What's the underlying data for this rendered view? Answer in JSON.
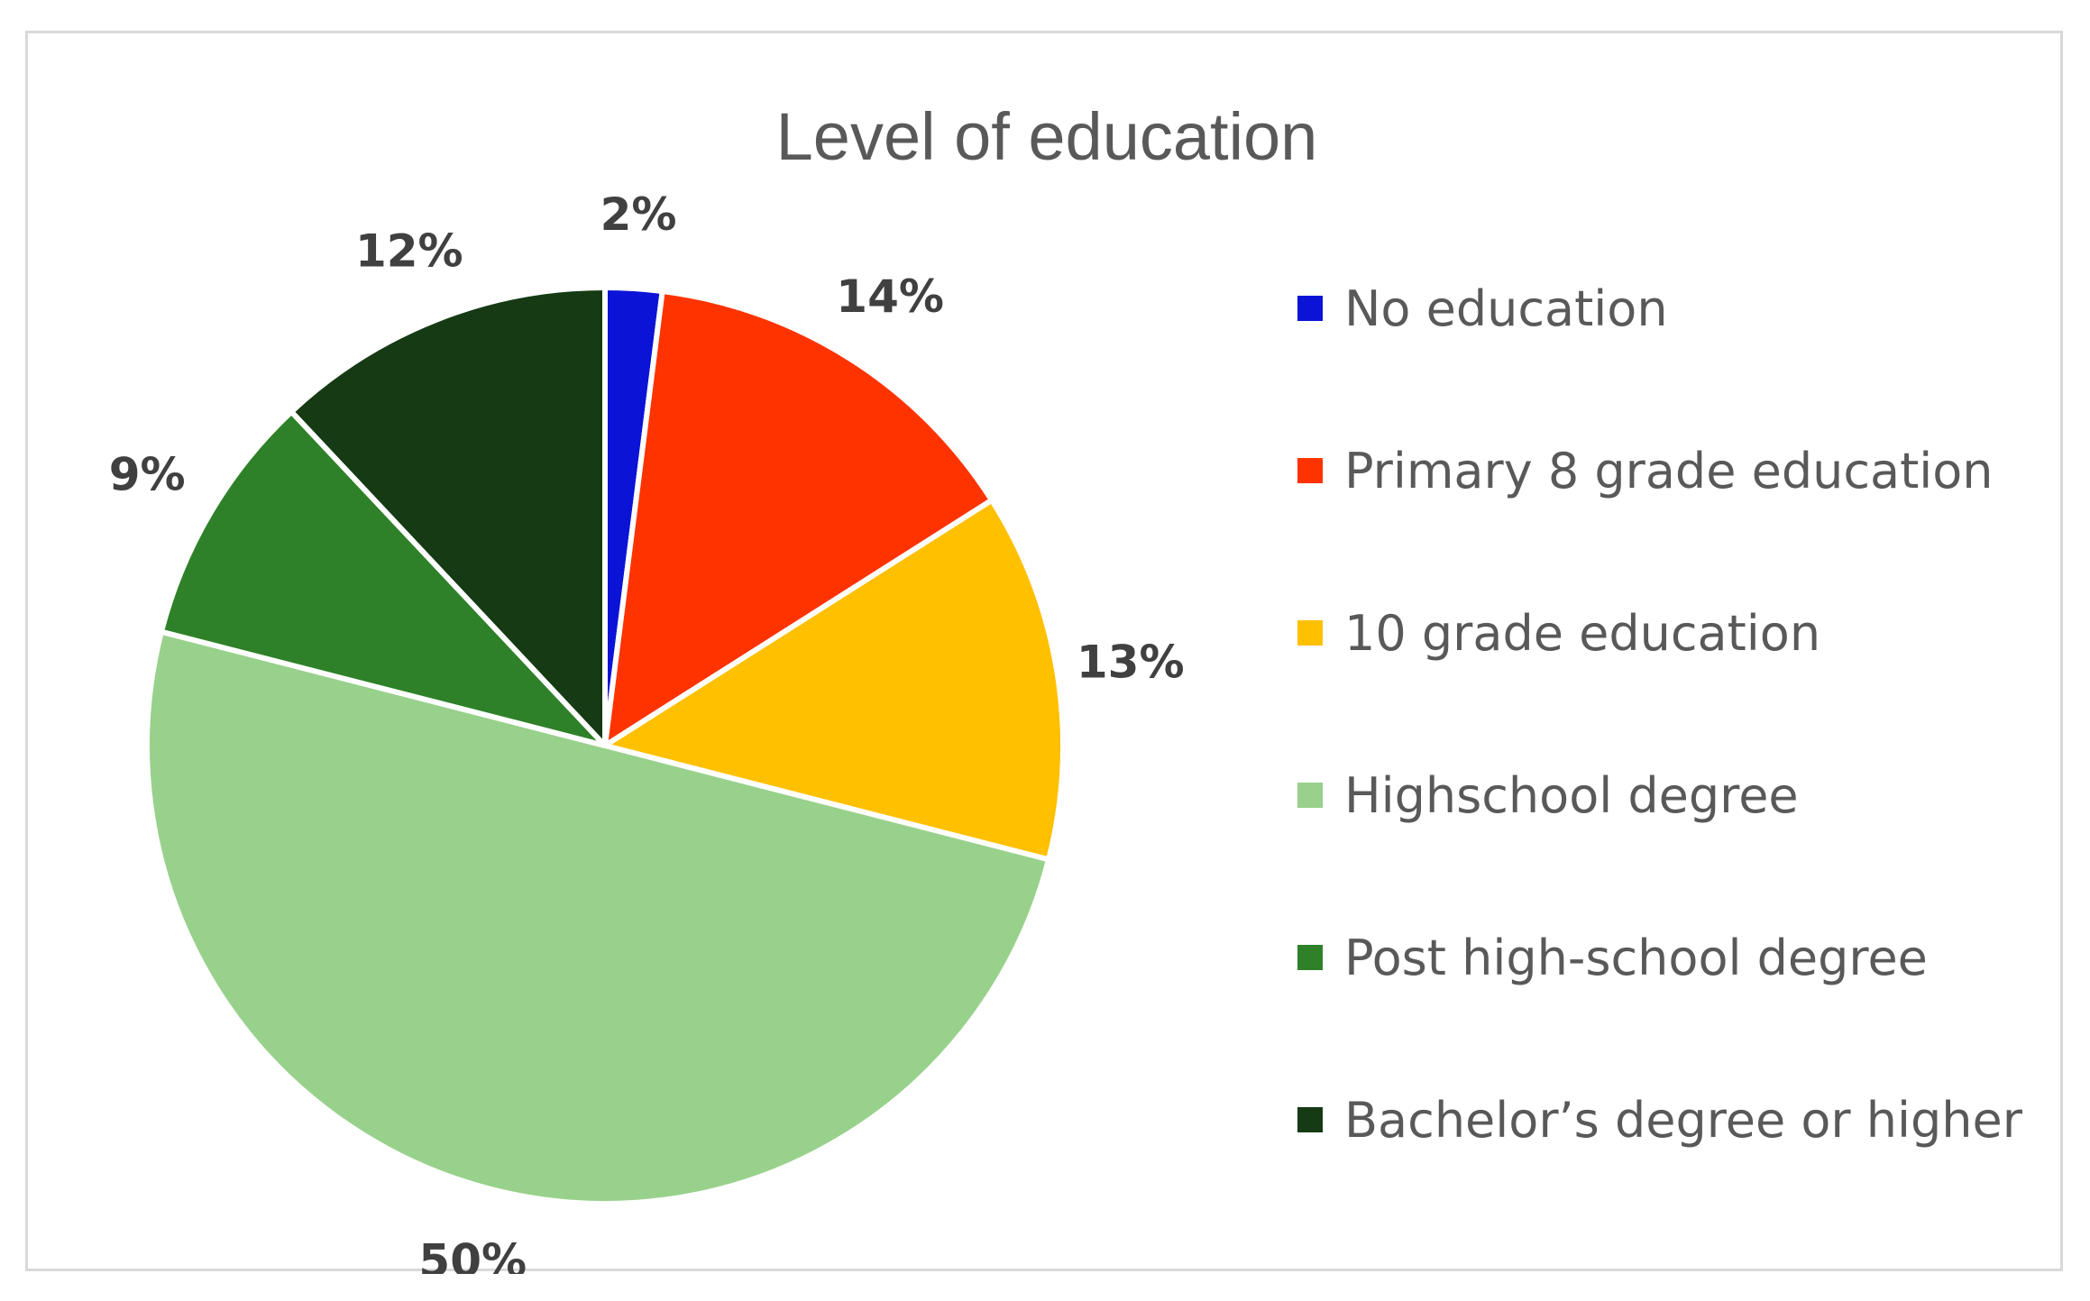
{
  "chart_data": {
    "type": "pie",
    "title": "Level of education",
    "categories": [
      "No education",
      "Primary 8 grade education",
      "10 grade education",
      "Highschool degree",
      "Post high-school degree",
      "Bachelor’s degree or higher"
    ],
    "values": [
      2,
      14,
      13,
      50,
      9,
      12
    ],
    "data_labels": [
      "2%",
      "14%",
      "13%",
      "50%",
      "9%",
      "12%"
    ],
    "colors": [
      "#0b13d6",
      "#ff3300",
      "#ffc000",
      "#98d18b",
      "#2e8128",
      "#153a14"
    ],
    "start_angle_deg": 0,
    "direction": "clockwise",
    "legend_position": "right"
  }
}
